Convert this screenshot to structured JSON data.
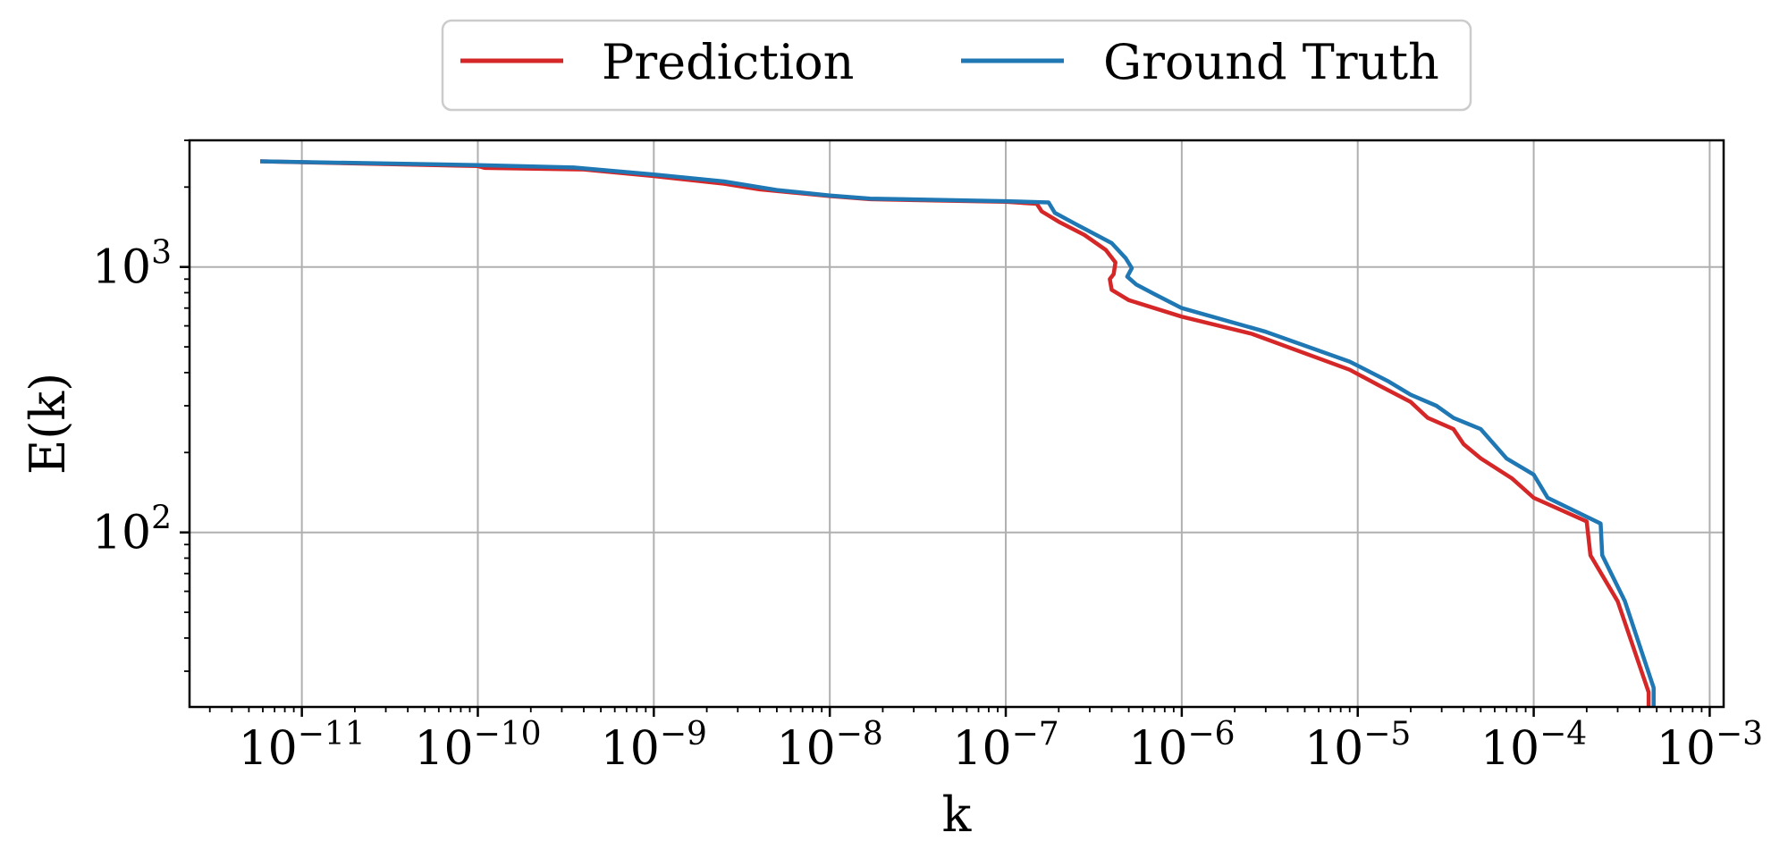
{
  "chart_data": {
    "type": "line",
    "title": "",
    "xlabel": "k",
    "ylabel": "E(k)",
    "xscale": "log",
    "yscale": "log",
    "xlim": [
      2.3e-12,
      0.0012
    ],
    "ylim": [
      22,
      3000
    ],
    "x_ticks": [
      {
        "value": 1e-11,
        "base": "10",
        "exp": "−11"
      },
      {
        "value": 1e-10,
        "base": "10",
        "exp": "−10"
      },
      {
        "value": 1e-09,
        "base": "10",
        "exp": "−9"
      },
      {
        "value": 1e-08,
        "base": "10",
        "exp": "−8"
      },
      {
        "value": 1e-07,
        "base": "10",
        "exp": "−7"
      },
      {
        "value": 1e-06,
        "base": "10",
        "exp": "−6"
      },
      {
        "value": 1e-05,
        "base": "10",
        "exp": "−5"
      },
      {
        "value": 0.0001,
        "base": "10",
        "exp": "−4"
      },
      {
        "value": 0.001,
        "base": "10",
        "exp": "−3"
      }
    ],
    "y_ticks": [
      {
        "value": 100,
        "base": "10",
        "exp": "2"
      },
      {
        "value": 1000,
        "base": "10",
        "exp": "3"
      }
    ],
    "grid": true,
    "legend": {
      "placement": "top-center, outside plot",
      "columns": 2
    },
    "series": [
      {
        "name": "Prediction",
        "color": "#d62728",
        "points": [
          [
            5.8e-12,
            2500
          ],
          [
            1e-10,
            2400
          ],
          [
            1.1e-10,
            2360
          ],
          [
            4e-10,
            2330
          ],
          [
            1e-09,
            2200
          ],
          [
            2.5e-09,
            2060
          ],
          [
            4e-09,
            1960
          ],
          [
            1e-08,
            1850
          ],
          [
            1.7e-08,
            1800
          ],
          [
            1e-07,
            1760
          ],
          [
            1.5e-07,
            1730
          ],
          [
            1.6e-07,
            1620
          ],
          [
            2e-07,
            1480
          ],
          [
            2.8e-07,
            1320
          ],
          [
            3.7e-07,
            1160
          ],
          [
            4.2e-07,
            1040
          ],
          [
            4.1e-07,
            940
          ],
          [
            3.9e-07,
            900
          ],
          [
            4e-07,
            820
          ],
          [
            5e-07,
            750
          ],
          [
            1e-06,
            650
          ],
          [
            2.5e-06,
            560
          ],
          [
            9e-06,
            410
          ],
          [
            1.3e-05,
            360
          ],
          [
            2e-05,
            310
          ],
          [
            2.5e-05,
            270
          ],
          [
            3.5e-05,
            245
          ],
          [
            4e-05,
            215
          ],
          [
            5e-05,
            190
          ],
          [
            7.5e-05,
            160
          ],
          [
            0.0001,
            135
          ],
          [
            0.0002,
            110
          ],
          [
            0.00021,
            82
          ],
          [
            0.0003,
            55
          ],
          [
            0.00045,
            25
          ],
          [
            0.00045,
            22
          ]
        ]
      },
      {
        "name": "Ground Truth",
        "color": "#1f77b4",
        "points": [
          [
            5.8e-12,
            2500
          ],
          [
            1e-10,
            2420
          ],
          [
            3.5e-10,
            2370
          ],
          [
            1e-09,
            2230
          ],
          [
            2.5e-09,
            2100
          ],
          [
            5e-09,
            1950
          ],
          [
            1e-08,
            1860
          ],
          [
            1.7e-08,
            1810
          ],
          [
            1e-07,
            1770
          ],
          [
            1.75e-07,
            1750
          ],
          [
            1.9e-07,
            1600
          ],
          [
            2.5e-07,
            1450
          ],
          [
            4e-07,
            1230
          ],
          [
            4.8e-07,
            1080
          ],
          [
            5.2e-07,
            990
          ],
          [
            4.9e-07,
            920
          ],
          [
            5.5e-07,
            860
          ],
          [
            7e-07,
            790
          ],
          [
            1e-06,
            700
          ],
          [
            3e-06,
            570
          ],
          [
            9e-06,
            440
          ],
          [
            1.5e-05,
            370
          ],
          [
            2e-05,
            330
          ],
          [
            2.8e-05,
            300
          ],
          [
            3.5e-05,
            270
          ],
          [
            5e-05,
            245
          ],
          [
            7e-05,
            190
          ],
          [
            0.0001,
            165
          ],
          [
            0.00012,
            135
          ],
          [
            0.00024,
            108
          ],
          [
            0.000245,
            82
          ],
          [
            0.00033,
            55
          ],
          [
            0.00048,
            26
          ],
          [
            0.00048,
            22
          ]
        ]
      }
    ]
  }
}
